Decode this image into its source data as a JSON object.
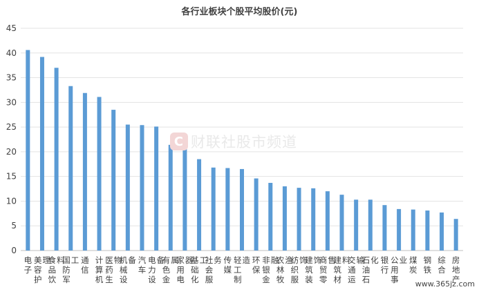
{
  "chart_data": {
    "type": "bar",
    "title": "各行业板块个股平均股价(元)",
    "ylim": [
      0,
      45
    ],
    "yticks": [
      0,
      5,
      10,
      15,
      20,
      25,
      30,
      35,
      40,
      45
    ],
    "grid": true,
    "categories": [
      "电子",
      "美容护理",
      "食品饮料",
      "国防军工",
      "通信",
      "计算机",
      "医药生物",
      "机械设备",
      "汽车",
      "电力设备",
      "有色金属",
      "家用电器",
      "基础化工",
      "社会服务",
      "传媒",
      "轻工制造",
      "环保",
      "非银金融",
      "农林牧渔",
      "纺织服饰",
      "建筑装饰",
      "商贸零售",
      "建筑材料",
      "交通运输",
      "石油石化",
      "银行",
      "公用事业",
      "煤炭",
      "钢铁",
      "综合",
      "房地产"
    ],
    "values": [
      40.6,
      39.2,
      37.0,
      33.3,
      31.9,
      31.1,
      28.5,
      25.5,
      25.4,
      25.1,
      21.4,
      21.3,
      18.5,
      16.8,
      16.7,
      16.5,
      14.6,
      13.7,
      13.0,
      12.7,
      12.6,
      12.0,
      11.3,
      10.3,
      10.3,
      9.2,
      8.4,
      8.3,
      8.1,
      7.7,
      6.4
    ],
    "bar_color": "#5b9bd5"
  },
  "watermark": {
    "icon": "C",
    "text": "财联社股市频道"
  },
  "site_label": "www.365jz.com"
}
